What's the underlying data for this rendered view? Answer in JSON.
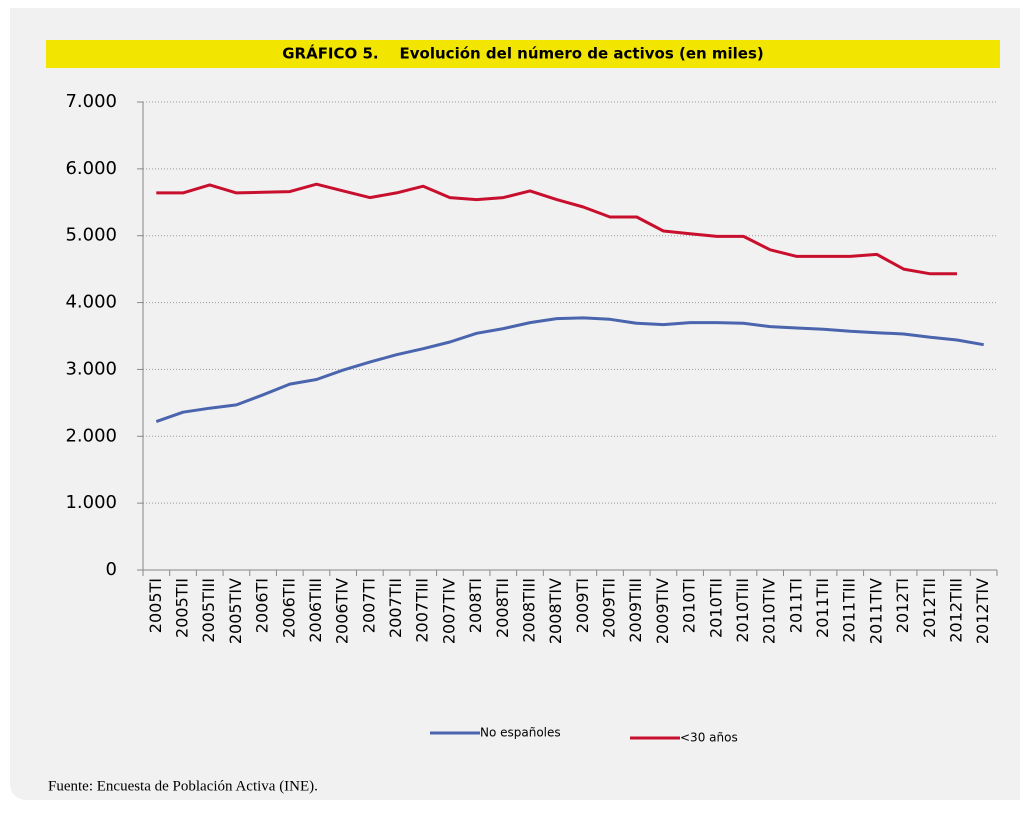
{
  "chart_data": {
    "type": "line",
    "title": "GRÁFICO 5.    Evolución del número de activos (en miles)",
    "source": "Fuente: Encuesta de Población Activa (INE).",
    "categories": [
      "2005TI",
      "2005TII",
      "2005TIII",
      "2005TIV",
      "2006TI",
      "2006TII",
      "2006TIII",
      "2006TIV",
      "2007TI",
      "2007TII",
      "2007TIII",
      "2007TIV",
      "2008TI",
      "2008TII",
      "2008TIII",
      "2008TIV",
      "2009TI",
      "2009TII",
      "2009TIII",
      "2009TIV",
      "2010TI",
      "2010TII",
      "2010TIII",
      "2010TIV",
      "2011TI",
      "2011TII",
      "2011TIII",
      "2011TIV",
      "2012TI",
      "2012TII",
      "2012TIII",
      "2012TIV"
    ],
    "series": [
      {
        "name": "No españoles",
        "color": "#4a65ae",
        "values": [
          2220,
          2360,
          2420,
          2470,
          2620,
          2780,
          2850,
          2990,
          3110,
          3220,
          3310,
          3410,
          3540,
          3610,
          3700,
          3760,
          3770,
          3750,
          3690,
          3670,
          3700,
          3700,
          3690,
          3640,
          3620,
          3600,
          3570,
          3550,
          3530,
          3480,
          3440,
          3370
        ]
      },
      {
        "name": "<30 años",
        "color": "#c8102e",
        "values": [
          5640,
          5640,
          5760,
          5640,
          5650,
          5660,
          5770,
          5670,
          5570,
          5640,
          5740,
          5570,
          5540,
          5570,
          5670,
          5540,
          5430,
          5280,
          5280,
          5070,
          5030,
          4990,
          4990,
          4790,
          4690,
          4690,
          4690,
          4720,
          4500,
          4430,
          4430,
          null
        ]
      }
    ],
    "ylim": [
      0,
      7000
    ],
    "yticks": [
      0,
      {
        "value": 1000,
        "label": "1.000"
      },
      {
        "value": 2000,
        "label": "2.000"
      },
      {
        "value": 3000,
        "label": "3.000"
      },
      {
        "value": 4000,
        "label": "4.000"
      },
      {
        "value": 5000,
        "label": "5.000"
      },
      {
        "value": 6000,
        "label": "6.000"
      },
      {
        "value": 7000,
        "label": "7.000"
      }
    ],
    "grid": true,
    "legend": "bottom"
  }
}
